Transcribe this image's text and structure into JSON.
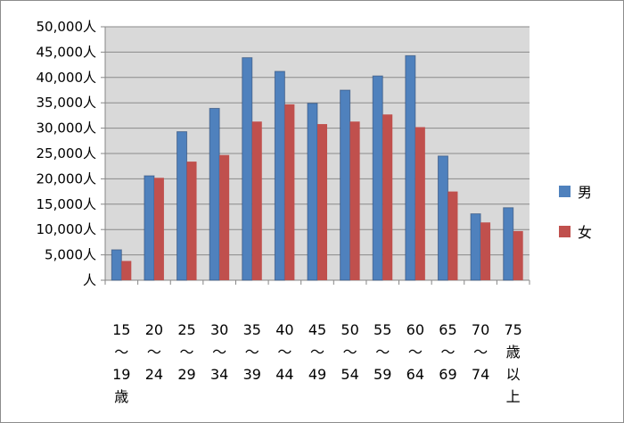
{
  "chart_data": {
    "type": "bar",
    "categories": [
      [
        "15",
        "～",
        "19",
        "歳"
      ],
      [
        "20",
        "～",
        "24"
      ],
      [
        "25",
        "～",
        "29"
      ],
      [
        "30",
        "～",
        "34"
      ],
      [
        "35",
        "～",
        "39"
      ],
      [
        "40",
        "～",
        "44"
      ],
      [
        "45",
        "～",
        "49"
      ],
      [
        "50",
        "～",
        "54"
      ],
      [
        "55",
        "～",
        "59"
      ],
      [
        "60",
        "～",
        "64"
      ],
      [
        "65",
        "～",
        "69"
      ],
      [
        "70",
        "～",
        "74"
      ],
      [
        "75",
        "歳",
        "以",
        "上"
      ]
    ],
    "series": [
      {
        "name": "男",
        "color": "#4f81bd",
        "values": [
          6000,
          20600,
          29300,
          33900,
          43900,
          41200,
          34900,
          37500,
          40300,
          44300,
          24500,
          13100,
          14300
        ]
      },
      {
        "name": "女",
        "color": "#c0504d",
        "values": [
          3800,
          20200,
          23400,
          24700,
          31300,
          34700,
          30800,
          31300,
          32700,
          30200,
          17500,
          11400,
          9700
        ]
      }
    ],
    "y_ticks": [
      "人",
      "5,000人",
      "10,000人",
      "15,000人",
      "20,000人",
      "25,000人",
      "30,000人",
      "35,000人",
      "40,000人",
      "45,000人",
      "50,000人"
    ],
    "ylim": [
      0,
      50000
    ],
    "y_tick_step": 5000,
    "title": "",
    "xlabel": "",
    "ylabel": "",
    "grid": true,
    "legend_position": "right"
  }
}
